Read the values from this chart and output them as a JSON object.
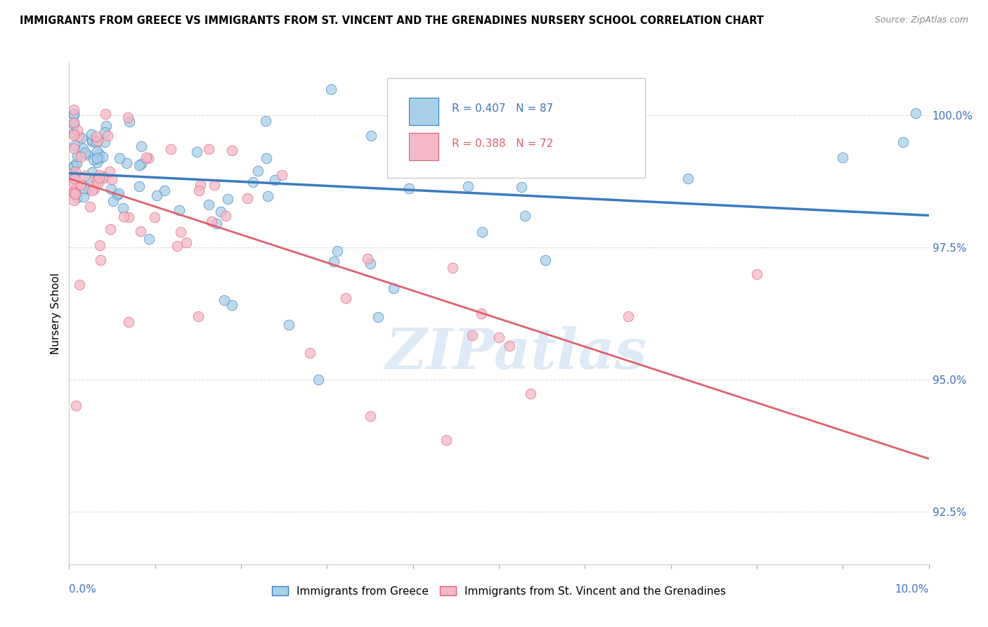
{
  "title": "IMMIGRANTS FROM GREECE VS IMMIGRANTS FROM ST. VINCENT AND THE GRENADINES NURSERY SCHOOL CORRELATION CHART",
  "source": "Source: ZipAtlas.com",
  "ylabel": "Nursery School",
  "ytick_labels": [
    "92.5%",
    "95.0%",
    "97.5%",
    "100.0%"
  ],
  "ytick_values": [
    92.5,
    95.0,
    97.5,
    100.0
  ],
  "xlim": [
    0.0,
    10.0
  ],
  "ylim": [
    91.5,
    101.0
  ],
  "legend_r1": "R = 0.407",
  "legend_n1": "N = 87",
  "legend_r2": "R = 0.388",
  "legend_n2": "N = 72",
  "color_blue": "#a8d0e8",
  "color_pink": "#f4b8c8",
  "color_blue_line": "#3a7bbf",
  "color_pink_line": "#e06070",
  "legend_r_color": "#4472c4",
  "background_color": "#ffffff",
  "watermark_color": "#c8dff0",
  "watermark_text": "ZIPatlas"
}
